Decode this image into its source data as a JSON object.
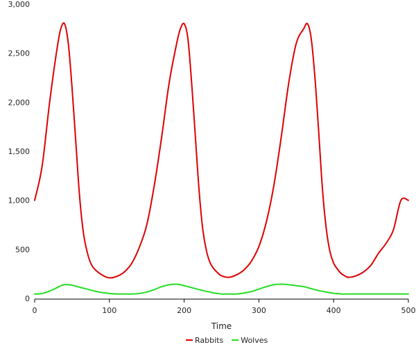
{
  "chart_data": {
    "type": "line",
    "title": "",
    "xlabel": "Time",
    "ylabel": "",
    "xlim": [
      0,
      500
    ],
    "ylim": [
      0,
      3000
    ],
    "grid": false,
    "legend_position": "bottom-center",
    "x_ticks": [
      {
        "value": 0,
        "label": "0"
      },
      {
        "value": 100,
        "label": "100"
      },
      {
        "value": 200,
        "label": "200"
      },
      {
        "value": 300,
        "label": "300"
      },
      {
        "value": 400,
        "label": "400"
      },
      {
        "value": 500,
        "label": "500"
      }
    ],
    "y_ticks": [
      {
        "value": 0,
        "label": "0"
      },
      {
        "value": 500,
        "label": "500"
      },
      {
        "value": 1000,
        "label": "1,000"
      },
      {
        "value": 1500,
        "label": "1,500"
      },
      {
        "value": 2000,
        "label": "2,000"
      },
      {
        "value": 2500,
        "label": "2,500"
      },
      {
        "value": 3000,
        "label": "3,000"
      }
    ],
    "x": [
      0,
      10,
      20,
      30,
      35,
      40,
      45,
      50,
      55,
      60,
      65,
      70,
      75,
      80,
      90,
      100,
      110,
      120,
      130,
      140,
      150,
      160,
      170,
      180,
      190,
      195,
      200,
      205,
      210,
      215,
      220,
      225,
      230,
      235,
      240,
      245,
      250,
      260,
      270,
      280,
      290,
      300,
      310,
      320,
      330,
      340,
      350,
      360,
      365,
      370,
      375,
      380,
      385,
      390,
      395,
      400,
      405,
      410,
      415,
      420,
      430,
      440,
      450,
      460,
      470,
      480,
      490,
      500
    ],
    "series": [
      {
        "name": "Rabbits",
        "color": "#dd0000",
        "values": [
          1000,
          1350,
          2000,
          2550,
          2750,
          2800,
          2600,
          2150,
          1600,
          1050,
          680,
          480,
          360,
          300,
          240,
          210,
          225,
          270,
          360,
          520,
          750,
          1150,
          1650,
          2200,
          2600,
          2750,
          2800,
          2650,
          2200,
          1650,
          1100,
          700,
          480,
          360,
          300,
          260,
          230,
          215,
          240,
          290,
          380,
          530,
          780,
          1150,
          1650,
          2200,
          2600,
          2750,
          2800,
          2650,
          2250,
          1700,
          1120,
          720,
          480,
          360,
          300,
          255,
          230,
          215,
          230,
          270,
          340,
          460,
          560,
          700,
          1000,
          1000
        ],
        "values_note": ""
      },
      {
        "name": "Wolves",
        "color": "#22dd22",
        "values": [
          45,
          50,
          75,
          110,
          130,
          140,
          140,
          135,
          125,
          115,
          105,
          95,
          85,
          75,
          60,
          50,
          45,
          45,
          45,
          50,
          65,
          90,
          120,
          140,
          145,
          140,
          130,
          120,
          110,
          100,
          90,
          80,
          72,
          65,
          55,
          50,
          45,
          45,
          45,
          55,
          70,
          95,
          120,
          140,
          145,
          140,
          130,
          120,
          110,
          100,
          90,
          80,
          72,
          65,
          58,
          52,
          50,
          45,
          45,
          45,
          45,
          45,
          45,
          45,
          45,
          45,
          45,
          45
        ]
      }
    ]
  }
}
